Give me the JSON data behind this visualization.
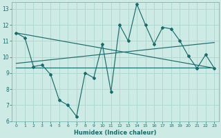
{
  "xlabel": "Humidex (Indice chaleur)",
  "bg_color": "#cdeae5",
  "grid_color": "#b0d8d2",
  "line_color": "#1a6b6b",
  "xlim": [
    -0.5,
    23.5
  ],
  "ylim": [
    6,
    13.4
  ],
  "xticks": [
    0,
    1,
    2,
    3,
    4,
    5,
    6,
    7,
    8,
    9,
    10,
    11,
    12,
    13,
    14,
    15,
    16,
    17,
    18,
    19,
    20,
    21,
    22,
    23
  ],
  "yticks": [
    6,
    7,
    8,
    9,
    10,
    11,
    12,
    13
  ],
  "series1_x": [
    0,
    1,
    2,
    3,
    4,
    5,
    6,
    7,
    8,
    9,
    10,
    11,
    12,
    13,
    14,
    15,
    16,
    17,
    18,
    19,
    20,
    21,
    22,
    23
  ],
  "series1_y": [
    11.5,
    11.2,
    9.4,
    9.5,
    8.9,
    7.3,
    7.0,
    6.3,
    9.0,
    8.7,
    10.8,
    7.85,
    12.0,
    11.0,
    13.3,
    12.0,
    10.8,
    11.85,
    11.75,
    11.0,
    10.05,
    9.3,
    10.15,
    9.3
  ],
  "series2_x": [
    0,
    23
  ],
  "series2_y": [
    11.5,
    9.3
  ],
  "series3_x": [
    0,
    23
  ],
  "series3_y": [
    9.35,
    9.35
  ],
  "series4_x": [
    0,
    23
  ],
  "series4_y": [
    9.6,
    10.9
  ]
}
